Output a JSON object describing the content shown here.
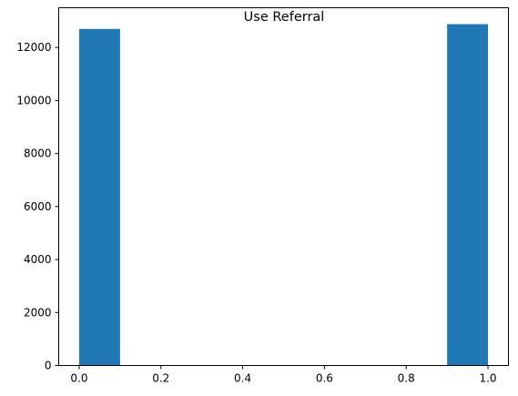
{
  "chart_data": {
    "type": "bar",
    "title": "Use Referral",
    "xlabel": "",
    "ylabel": "",
    "bins": [
      {
        "x0": 0.0,
        "x1": 0.1,
        "count": 12700
      },
      {
        "x0": 0.1,
        "x1": 0.2,
        "count": 0
      },
      {
        "x0": 0.2,
        "x1": 0.3,
        "count": 0
      },
      {
        "x0": 0.3,
        "x1": 0.4,
        "count": 0
      },
      {
        "x0": 0.4,
        "x1": 0.5,
        "count": 0
      },
      {
        "x0": 0.5,
        "x1": 0.6,
        "count": 0
      },
      {
        "x0": 0.6,
        "x1": 0.7,
        "count": 0
      },
      {
        "x0": 0.7,
        "x1": 0.8,
        "count": 0
      },
      {
        "x0": 0.8,
        "x1": 0.9,
        "count": 0
      },
      {
        "x0": 0.9,
        "x1": 1.0,
        "count": 12880
      }
    ],
    "xlim": [
      -0.05,
      1.05
    ],
    "ylim": [
      0,
      13500
    ],
    "x_ticks": [
      "0.0",
      "0.2",
      "0.4",
      "0.6",
      "0.8",
      "1.0"
    ],
    "y_ticks": [
      "0",
      "2000",
      "4000",
      "6000",
      "8000",
      "10000",
      "12000"
    ],
    "grid": false,
    "bar_color": "#1f77b4"
  }
}
